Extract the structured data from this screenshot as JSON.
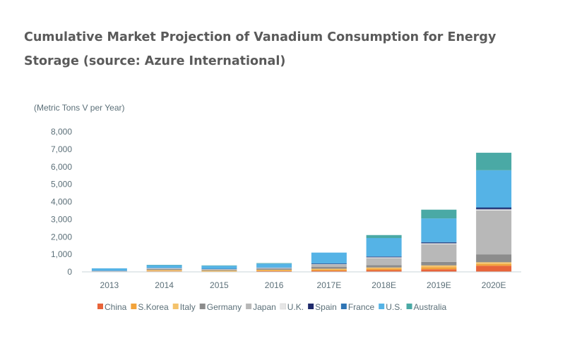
{
  "title": "Cumulative Market Projection of Vanadium Consumption for Energy Storage (source: Azure International)",
  "chart_data": {
    "type": "bar",
    "stacked": true,
    "unit_label": "(Metric Tons V per Year)",
    "categories": [
      "2013",
      "2014",
      "2015",
      "2016",
      "2017E",
      "2018E",
      "2019E",
      "2020E"
    ],
    "ylim": [
      0,
      8000
    ],
    "yticks": [
      "0",
      "1,000",
      "2,000",
      "3,000",
      "4,000",
      "5,000",
      "6,000",
      "7,000",
      "8,000"
    ],
    "legend_position": "bottom",
    "series": [
      {
        "name": "China",
        "color": "#e8643a",
        "values": [
          0,
          30,
          20,
          40,
          60,
          100,
          150,
          350
        ]
      },
      {
        "name": "S.Korea",
        "color": "#f2a33a",
        "values": [
          0,
          40,
          30,
          40,
          60,
          80,
          120,
          100
        ]
      },
      {
        "name": "Italy",
        "color": "#f4c26b",
        "values": [
          0,
          40,
          30,
          40,
          60,
          70,
          100,
          100
        ]
      },
      {
        "name": "Germany",
        "color": "#8c8c8c",
        "values": [
          30,
          60,
          50,
          70,
          100,
          130,
          200,
          450
        ]
      },
      {
        "name": "Japan",
        "color": "#b8b8b8",
        "values": [
          20,
          30,
          20,
          30,
          150,
          400,
          1000,
          2500
        ]
      },
      {
        "name": "U.K.",
        "color": "#e6e6e6",
        "values": [
          0,
          10,
          10,
          10,
          20,
          50,
          60,
          70
        ]
      },
      {
        "name": "Spain",
        "color": "#1f2a6b",
        "values": [
          0,
          0,
          0,
          0,
          10,
          30,
          40,
          80
        ]
      },
      {
        "name": "France",
        "color": "#2f75b5",
        "values": [
          20,
          20,
          20,
          20,
          20,
          20,
          30,
          50
        ]
      },
      {
        "name": "U.S.",
        "color": "#55b3e6",
        "values": [
          130,
          150,
          170,
          220,
          620,
          1050,
          1350,
          2100
        ]
      },
      {
        "name": "Australia",
        "color": "#4aa9a5",
        "values": [
          0,
          20,
          20,
          30,
          0,
          170,
          500,
          1000
        ]
      }
    ]
  }
}
